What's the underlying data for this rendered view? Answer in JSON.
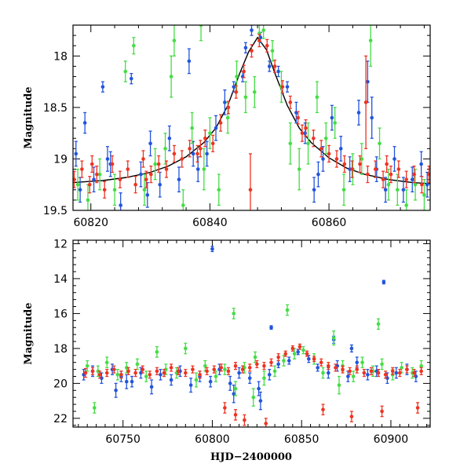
{
  "chart_data": [
    {
      "type": "scatter",
      "title": "",
      "xlabel": "",
      "ylabel": "Magnitude",
      "xlim": [
        60817,
        60877
      ],
      "ylim": [
        19.5,
        17.7
      ],
      "x_ticks": [
        60820,
        60840,
        60860
      ],
      "y_ticks": [
        18,
        18.5,
        19,
        19.5
      ],
      "y_inverted": true,
      "grid": false,
      "legend": "none",
      "model_curve": {
        "color": "#000000",
        "x": [
          60817,
          60822,
          60826,
          60830,
          60833,
          60836,
          60839,
          60841,
          60843,
          60845,
          60846.5,
          60848,
          60849.5,
          60851,
          60853,
          60855,
          60857,
          60860,
          60863,
          60866,
          60870,
          60874,
          60877
        ],
        "y": [
          19.23,
          19.21,
          19.18,
          19.13,
          19.07,
          18.98,
          18.84,
          18.7,
          18.48,
          18.17,
          17.96,
          17.82,
          17.94,
          18.18,
          18.48,
          18.7,
          18.84,
          18.99,
          19.09,
          19.15,
          19.2,
          19.23,
          19.24
        ]
      },
      "series": [
        {
          "color": "#2255dd",
          "x": [
            60817.5,
            60818.2,
            60819.0,
            60820.5,
            60822.0,
            60823.3,
            60825.0,
            60826.8,
            60828.4,
            60830.0,
            60831.6,
            60833.2,
            60834.8,
            60836.5,
            60838.0,
            60839.5,
            60841.0,
            60842.5,
            60844.0,
            60845.5,
            60847.0,
            60848.5,
            60850.0,
            60851.5,
            60853.0,
            60854.5,
            60856.0,
            60857.5,
            60859.0,
            60860.5,
            60862.0,
            60863.5,
            60865.0,
            60866.5,
            60868.0,
            60869.5,
            60871.0,
            60872.5,
            60874.0,
            60875.5,
            60876.5,
            60822.8,
            60829.5,
            60837.2,
            60846.0,
            60858.2,
            60867.2
          ],
          "y": [
            18.95,
            19.3,
            18.65,
            19.2,
            18.3,
            19.05,
            19.45,
            18.22,
            19.15,
            18.85,
            19.25,
            18.8,
            19.2,
            18.05,
            19.1,
            18.95,
            18.7,
            18.45,
            18.3,
            18.2,
            17.75,
            17.82,
            18.1,
            18.15,
            18.3,
            18.55,
            18.75,
            19.3,
            19.0,
            18.6,
            18.9,
            19.1,
            18.55,
            18.25,
            19.1,
            19.3,
            19.0,
            19.3,
            19.2,
            19.05,
            19.25,
            19.0,
            19.35,
            18.95,
            17.92,
            19.15,
            18.6
          ],
          "yerr": [
            0.12,
            0.12,
            0.1,
            0.12,
            0.05,
            0.12,
            0.12,
            0.05,
            0.12,
            0.12,
            0.12,
            0.12,
            0.12,
            0.12,
            0.12,
            0.12,
            0.12,
            0.12,
            0.05,
            0.05,
            0.05,
            0.05,
            0.05,
            0.05,
            0.05,
            0.1,
            0.1,
            0.12,
            0.12,
            0.12,
            0.12,
            0.12,
            0.12,
            0.2,
            0.12,
            0.12,
            0.12,
            0.12,
            0.12,
            0.12,
            0.12,
            0.12,
            0.12,
            0.12,
            0.05,
            0.12,
            0.2
          ]
        },
        {
          "color": "#44dd44",
          "x": [
            60817.8,
            60819.5,
            60821.5,
            60824.0,
            60825.8,
            60827.2,
            60829.0,
            60830.8,
            60832.5,
            60834.0,
            60835.5,
            60837.0,
            60838.5,
            60840.0,
            60841.5,
            60843.0,
            60844.5,
            60846.0,
            60847.5,
            60849.0,
            60850.5,
            60852.0,
            60853.5,
            60855.0,
            60856.5,
            60858.0,
            60859.5,
            60861.0,
            60862.5,
            60864.0,
            60865.5,
            60867.0,
            60868.5,
            60870.0,
            60871.5,
            60873.0,
            60874.5,
            60876.0,
            60833.5,
            60839.0,
            60848.3
          ],
          "y": [
            19.25,
            19.4,
            19.15,
            19.3,
            18.15,
            17.9,
            19.3,
            19.05,
            18.9,
            17.85,
            19.45,
            18.7,
            17.7,
            18.75,
            19.3,
            18.6,
            18.2,
            18.4,
            18.35,
            17.75,
            17.95,
            18.3,
            18.85,
            19.1,
            18.85,
            18.4,
            18.8,
            18.65,
            19.3,
            19.1,
            19.0,
            17.85,
            18.85,
            19.25,
            19.3,
            19.45,
            19.25,
            19.35,
            18.2,
            19.1,
            17.78
          ],
          "yerr": [
            0.15,
            0.15,
            0.15,
            0.15,
            0.1,
            0.08,
            0.15,
            0.15,
            0.15,
            0.15,
            0.15,
            0.15,
            0.15,
            0.15,
            0.15,
            0.15,
            0.15,
            0.15,
            0.15,
            0.08,
            0.1,
            0.15,
            0.2,
            0.2,
            0.2,
            0.15,
            0.15,
            0.15,
            0.15,
            0.15,
            0.15,
            0.25,
            0.15,
            0.15,
            0.15,
            0.15,
            0.15,
            0.15,
            0.2,
            0.2,
            0.08
          ]
        },
        {
          "color": "#ee3322",
          "x": [
            60817.2,
            60818.5,
            60819.8,
            60821.0,
            60822.3,
            60823.6,
            60824.9,
            60826.2,
            60827.5,
            60828.8,
            60830.1,
            60831.4,
            60832.7,
            60834.0,
            60835.3,
            60836.6,
            60837.9,
            60839.2,
            60840.5,
            60841.8,
            60843.1,
            60844.4,
            60845.7,
            60847.0,
            60848.3,
            60849.6,
            60850.9,
            60852.2,
            60853.5,
            60854.8,
            60856.1,
            60857.4,
            60858.7,
            60860.0,
            60861.3,
            60862.6,
            60863.9,
            60865.2,
            60866.5,
            60867.8,
            60869.1,
            60870.4,
            60871.7,
            60873.0,
            60874.3,
            60875.6,
            60876.8,
            60846.8,
            60866.2,
            60820.2,
            60829.3,
            60838.4,
            60855.5,
            60869.7
          ],
          "y": [
            19.2,
            19.1,
            19.25,
            19.15,
            19.3,
            19.05,
            19.2,
            19.1,
            19.25,
            19.0,
            19.15,
            19.05,
            19.1,
            18.95,
            19.0,
            18.9,
            18.95,
            18.8,
            18.85,
            18.65,
            18.5,
            18.35,
            18.15,
            17.95,
            17.85,
            17.9,
            18.1,
            18.3,
            18.45,
            18.6,
            18.7,
            18.8,
            18.9,
            18.95,
            19.0,
            19.05,
            19.1,
            19.05,
            19.15,
            19.1,
            19.2,
            19.15,
            19.1,
            19.2,
            19.15,
            19.25,
            19.15,
            19.3,
            18.45,
            19.05,
            19.2,
            18.9,
            18.75,
            19.05
          ],
          "yerr": [
            0.08,
            0.08,
            0.08,
            0.08,
            0.08,
            0.08,
            0.08,
            0.08,
            0.08,
            0.08,
            0.08,
            0.08,
            0.08,
            0.08,
            0.08,
            0.08,
            0.08,
            0.08,
            0.08,
            0.08,
            0.06,
            0.06,
            0.06,
            0.06,
            0.06,
            0.06,
            0.06,
            0.06,
            0.06,
            0.06,
            0.08,
            0.08,
            0.08,
            0.08,
            0.08,
            0.08,
            0.08,
            0.08,
            0.08,
            0.08,
            0.08,
            0.08,
            0.08,
            0.08,
            0.08,
            0.08,
            0.08,
            0.35,
            0.45,
            0.08,
            0.08,
            0.08,
            0.08,
            0.08
          ]
        }
      ]
    },
    {
      "type": "scatter",
      "title": "",
      "xlabel": "HJD−2400000",
      "ylabel": "Magnitude",
      "xlim": [
        60722,
        60922
      ],
      "ylim": [
        22.5,
        11.8
      ],
      "x_ticks": [
        60750,
        60800,
        60850,
        60900
      ],
      "y_ticks": [
        12,
        14,
        16,
        18,
        20,
        22
      ],
      "y_inverted": true,
      "grid": false,
      "legend": "none",
      "series": [
        {
          "color": "#2255dd",
          "x": [
            60728,
            60733,
            60738,
            60744,
            60749,
            60755,
            60760,
            60766,
            60771,
            60777,
            60782,
            60788,
            60793,
            60799,
            60804,
            60810,
            60815,
            60821,
            60826,
            60832,
            60837,
            60843,
            60848,
            60854,
            60859,
            60865,
            60870,
            60876,
            60881,
            60887,
            60892,
            60898,
            60903,
            60909,
            60914,
            60800,
            60896,
            60833,
            60878,
            60868,
            60752,
            60812,
            60827,
            60746
          ],
          "y": [
            19.5,
            19.3,
            19.7,
            19.2,
            19.6,
            19.9,
            19.4,
            20.2,
            19.5,
            19.8,
            19.3,
            20.1,
            19.6,
            19.9,
            19.2,
            20.0,
            19.4,
            19.7,
            20.3,
            19.5,
            18.9,
            18.7,
            18.2,
            18.6,
            19.1,
            19.4,
            19.0,
            19.6,
            18.8,
            19.5,
            19.3,
            19.7,
            19.4,
            19.2,
            19.6,
            12.3,
            14.2,
            16.8,
            18.0,
            17.5,
            19.9,
            20.6,
            21.0,
            20.4
          ],
          "yerr": [
            0.3,
            0.3,
            0.3,
            0.3,
            0.3,
            0.3,
            0.3,
            0.4,
            0.3,
            0.3,
            0.3,
            0.4,
            0.3,
            0.3,
            0.3,
            0.4,
            0.3,
            0.3,
            0.4,
            0.3,
            0.2,
            0.2,
            0.15,
            0.2,
            0.2,
            0.3,
            0.3,
            0.3,
            0.3,
            0.3,
            0.3,
            0.3,
            0.3,
            0.3,
            0.3,
            0.15,
            0.1,
            0.1,
            0.2,
            0.2,
            0.4,
            0.5,
            0.5,
            0.4
          ]
        },
        {
          "color": "#44dd44",
          "x": [
            60730,
            60736,
            60741,
            60747,
            60752,
            60758,
            60763,
            60769,
            60774,
            60780,
            60785,
            60791,
            60796,
            60802,
            60807,
            60813,
            60818,
            60824,
            60829,
            60835,
            60840,
            60846,
            60851,
            60857,
            60862,
            60868,
            60873,
            60879,
            60884,
            60890,
            60895,
            60901,
            60906,
            60912,
            60917,
            60812,
            60842,
            60893,
            60734,
            60823,
            60871
          ],
          "y": [
            19.0,
            19.3,
            18.8,
            19.5,
            19.1,
            18.9,
            19.6,
            18.2,
            19.2,
            19.4,
            18.0,
            19.8,
            19.0,
            19.6,
            19.2,
            20.3,
            19.1,
            18.5,
            19.7,
            19.3,
            18.7,
            18.3,
            18.1,
            18.6,
            19.4,
            17.4,
            19.0,
            19.6,
            18.8,
            19.3,
            18.9,
            19.5,
            19.1,
            19.4,
            19.0,
            16.0,
            15.8,
            16.6,
            21.4,
            20.8,
            20.1
          ],
          "yerr": [
            0.3,
            0.3,
            0.3,
            0.3,
            0.3,
            0.3,
            0.3,
            0.3,
            0.3,
            0.3,
            0.3,
            0.4,
            0.3,
            0.3,
            0.3,
            0.4,
            0.3,
            0.3,
            0.4,
            0.3,
            0.3,
            0.3,
            0.2,
            0.3,
            0.3,
            0.4,
            0.3,
            0.3,
            0.3,
            0.3,
            0.3,
            0.3,
            0.3,
            0.3,
            0.3,
            0.3,
            0.3,
            0.3,
            0.3,
            0.5,
            0.5
          ]
        },
        {
          "color": "#ee3322",
          "x": [
            60729,
            60733,
            60737,
            60741,
            60745,
            60749,
            60753,
            60757,
            60761,
            60765,
            60769,
            60773,
            60777,
            60781,
            60785,
            60789,
            60793,
            60797,
            60801,
            60805,
            60809,
            60813,
            60817,
            60821,
            60825,
            60829,
            60833,
            60837,
            60841,
            60845,
            60849,
            60853,
            60857,
            60861,
            60865,
            60869,
            60873,
            60877,
            60881,
            60885,
            60889,
            60893,
            60897,
            60901,
            60905,
            60909,
            60913,
            60917,
            60807,
            60813,
            60818,
            60830,
            60862,
            60878,
            60895,
            60915
          ],
          "y": [
            19.4,
            19.3,
            19.5,
            19.4,
            19.2,
            19.5,
            19.3,
            19.4,
            19.2,
            19.5,
            19.3,
            19.4,
            19.1,
            19.3,
            19.4,
            19.2,
            19.5,
            19.3,
            19.2,
            19.1,
            19.3,
            19.0,
            19.2,
            19.1,
            18.9,
            19.0,
            18.8,
            18.5,
            18.3,
            18.0,
            17.9,
            18.3,
            18.6,
            18.8,
            19.0,
            19.1,
            19.2,
            19.3,
            19.2,
            19.4,
            19.3,
            19.4,
            19.5,
            19.3,
            19.4,
            19.2,
            19.4,
            19.3,
            21.4,
            21.8,
            22.1,
            22.3,
            21.5,
            21.9,
            21.6,
            21.4
          ],
          "yerr": [
            0.25,
            0.2,
            0.2,
            0.2,
            0.2,
            0.2,
            0.2,
            0.2,
            0.2,
            0.2,
            0.2,
            0.2,
            0.2,
            0.2,
            0.2,
            0.2,
            0.2,
            0.2,
            0.2,
            0.2,
            0.2,
            0.2,
            0.2,
            0.2,
            0.2,
            0.2,
            0.2,
            0.2,
            0.15,
            0.15,
            0.15,
            0.15,
            0.15,
            0.2,
            0.2,
            0.2,
            0.2,
            0.2,
            0.2,
            0.2,
            0.2,
            0.2,
            0.2,
            0.2,
            0.2,
            0.2,
            0.2,
            0.2,
            0.3,
            0.3,
            0.3,
            0.3,
            0.3,
            0.3,
            0.3,
            0.3
          ]
        }
      ]
    }
  ]
}
